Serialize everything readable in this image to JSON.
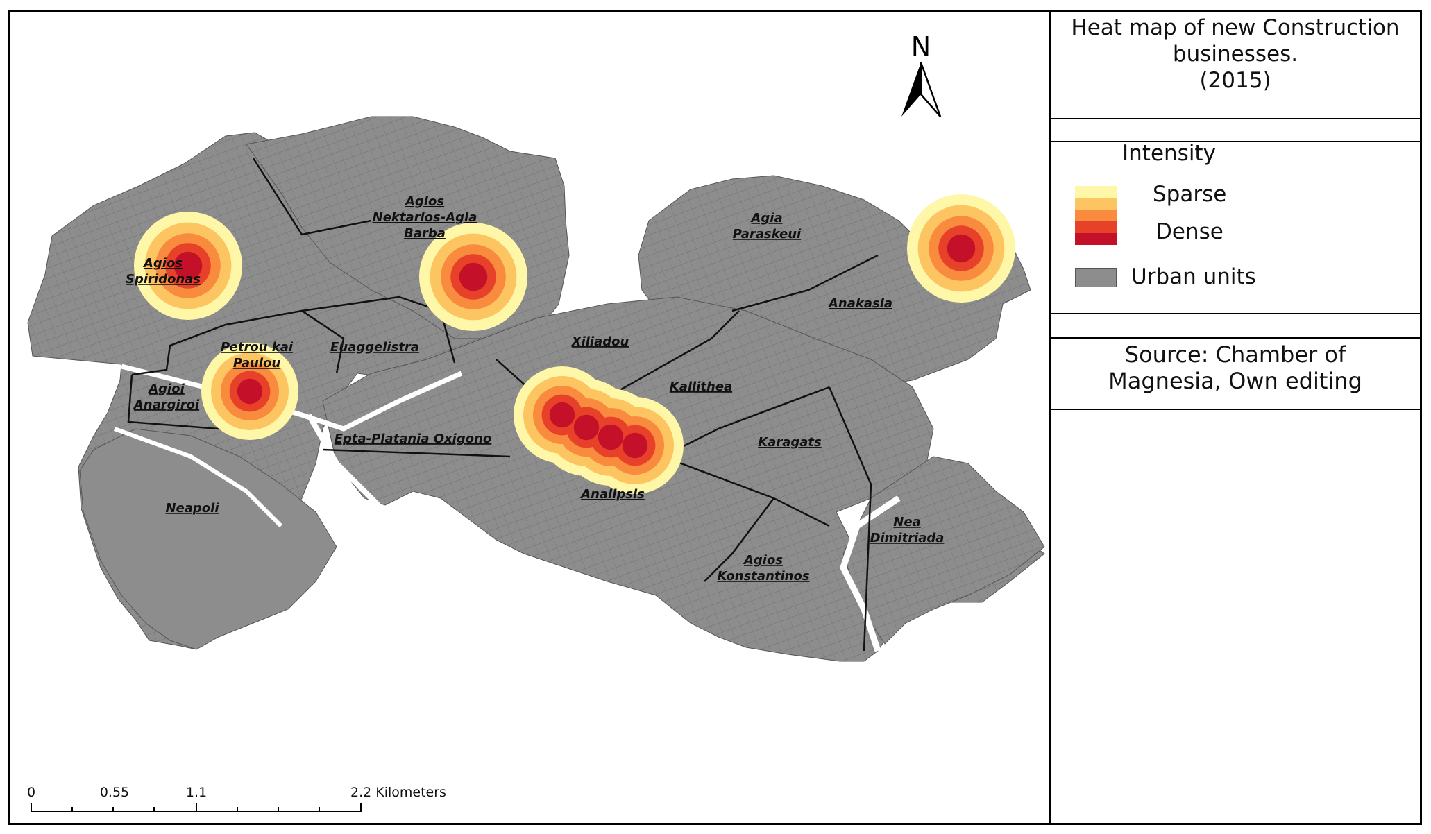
{
  "map": {
    "north_label": "N",
    "unit_labels": [
      {
        "id": "agios-nektarios-agia-barba",
        "lines": [
          "Agios",
          "Nektarios-Agia",
          "Barba"
        ]
      },
      {
        "id": "agia-paraskeui",
        "lines": [
          "Agia",
          "Paraskeui"
        ]
      },
      {
        "id": "agios-spiridonas",
        "lines": [
          "Agios",
          "Spiridonas"
        ]
      },
      {
        "id": "anakasia",
        "lines": [
          "Anakasia"
        ]
      },
      {
        "id": "petrou-kai-paulou",
        "lines": [
          "Petrou kai",
          "Paulou"
        ]
      },
      {
        "id": "euaggelistra",
        "lines": [
          "Euaggelistra"
        ]
      },
      {
        "id": "xiliadou",
        "lines": [
          "Xiliadou"
        ]
      },
      {
        "id": "agioi-anargiroi",
        "lines": [
          "Agioi",
          "Anargiroi"
        ]
      },
      {
        "id": "kallithea",
        "lines": [
          "Kallithea"
        ]
      },
      {
        "id": "epta-platania-oxigono",
        "lines": [
          "Epta-Platania  Oxigono"
        ]
      },
      {
        "id": "karagats",
        "lines": [
          "Karagats"
        ]
      },
      {
        "id": "analipsis",
        "lines": [
          "Analipsis"
        ]
      },
      {
        "id": "neapoli",
        "lines": [
          "Neapoli"
        ]
      },
      {
        "id": "nea-dimitriada",
        "lines": [
          "Nea",
          "Dimitriada"
        ]
      },
      {
        "id": "agios-konstantinos",
        "lines": [
          "Agios",
          "Konstantinos"
        ]
      }
    ],
    "hotspots": [
      {
        "id": "agios-spiridonas",
        "intensity": "Dense"
      },
      {
        "id": "agios-nektarios",
        "intensity": "Dense"
      },
      {
        "id": "anakasia",
        "intensity": "Dense"
      },
      {
        "id": "agioi-anargiroi",
        "intensity": "Dense"
      },
      {
        "id": "xiliadou-kallithea-analipsis",
        "intensity": "Dense"
      }
    ],
    "heat_colors": [
      "#fff7a8",
      "#fdc562",
      "#f98b3e",
      "#e8412a",
      "#c5102a"
    ],
    "urban_color": "#8d8d8d"
  },
  "scale_bar": {
    "ticks": [
      "0",
      "0.55",
      "1.1",
      "2.2 Kilometers"
    ]
  },
  "legend": {
    "title": "Heat map of new Construction\nbusinesses.\n(2015)",
    "intensity_heading": "Intensity",
    "sparse_label": "Sparse",
    "dense_label": "Dense",
    "urban_units_label": "Urban units",
    "swatch_colors": [
      "#fff7a8",
      "#fdc562",
      "#f98b3e",
      "#e8412a",
      "#c5102a"
    ],
    "source": "Source: Chamber of\nMagnesia, Own editing"
  }
}
